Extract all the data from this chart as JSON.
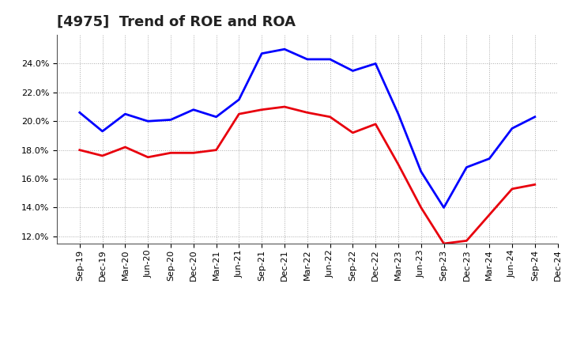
{
  "title": "[4975]  Trend of ROE and ROA",
  "x_labels": [
    "Sep-19",
    "Dec-19",
    "Mar-20",
    "Jun-20",
    "Sep-20",
    "Dec-20",
    "Mar-21",
    "Jun-21",
    "Sep-21",
    "Dec-21",
    "Mar-22",
    "Jun-22",
    "Sep-22",
    "Dec-22",
    "Mar-23",
    "Jun-23",
    "Sep-23",
    "Dec-23",
    "Mar-24",
    "Jun-24",
    "Sep-24",
    "Dec-24"
  ],
  "ROE": [
    18.0,
    17.6,
    18.2,
    17.5,
    17.8,
    17.8,
    18.0,
    20.5,
    20.8,
    21.0,
    20.6,
    20.3,
    19.2,
    19.8,
    17.0,
    14.0,
    11.5,
    11.7,
    13.5,
    15.3,
    15.6,
    null
  ],
  "ROA": [
    20.6,
    19.3,
    20.5,
    20.0,
    20.1,
    20.8,
    20.3,
    21.5,
    24.7,
    25.0,
    24.3,
    24.3,
    23.5,
    24.0,
    20.5,
    16.5,
    14.0,
    16.8,
    17.4,
    19.5,
    20.3,
    null
  ],
  "roe_color": "#e8000d",
  "roa_color": "#0000ff",
  "background_color": "#ffffff",
  "grid_color": "#aaaaaa",
  "ylim": [
    11.5,
    26.0
  ],
  "yticks": [
    12.0,
    14.0,
    16.0,
    18.0,
    20.0,
    22.0,
    24.0
  ],
  "line_width": 2.0,
  "title_fontsize": 13,
  "tick_fontsize": 8,
  "legend_fontsize": 10
}
